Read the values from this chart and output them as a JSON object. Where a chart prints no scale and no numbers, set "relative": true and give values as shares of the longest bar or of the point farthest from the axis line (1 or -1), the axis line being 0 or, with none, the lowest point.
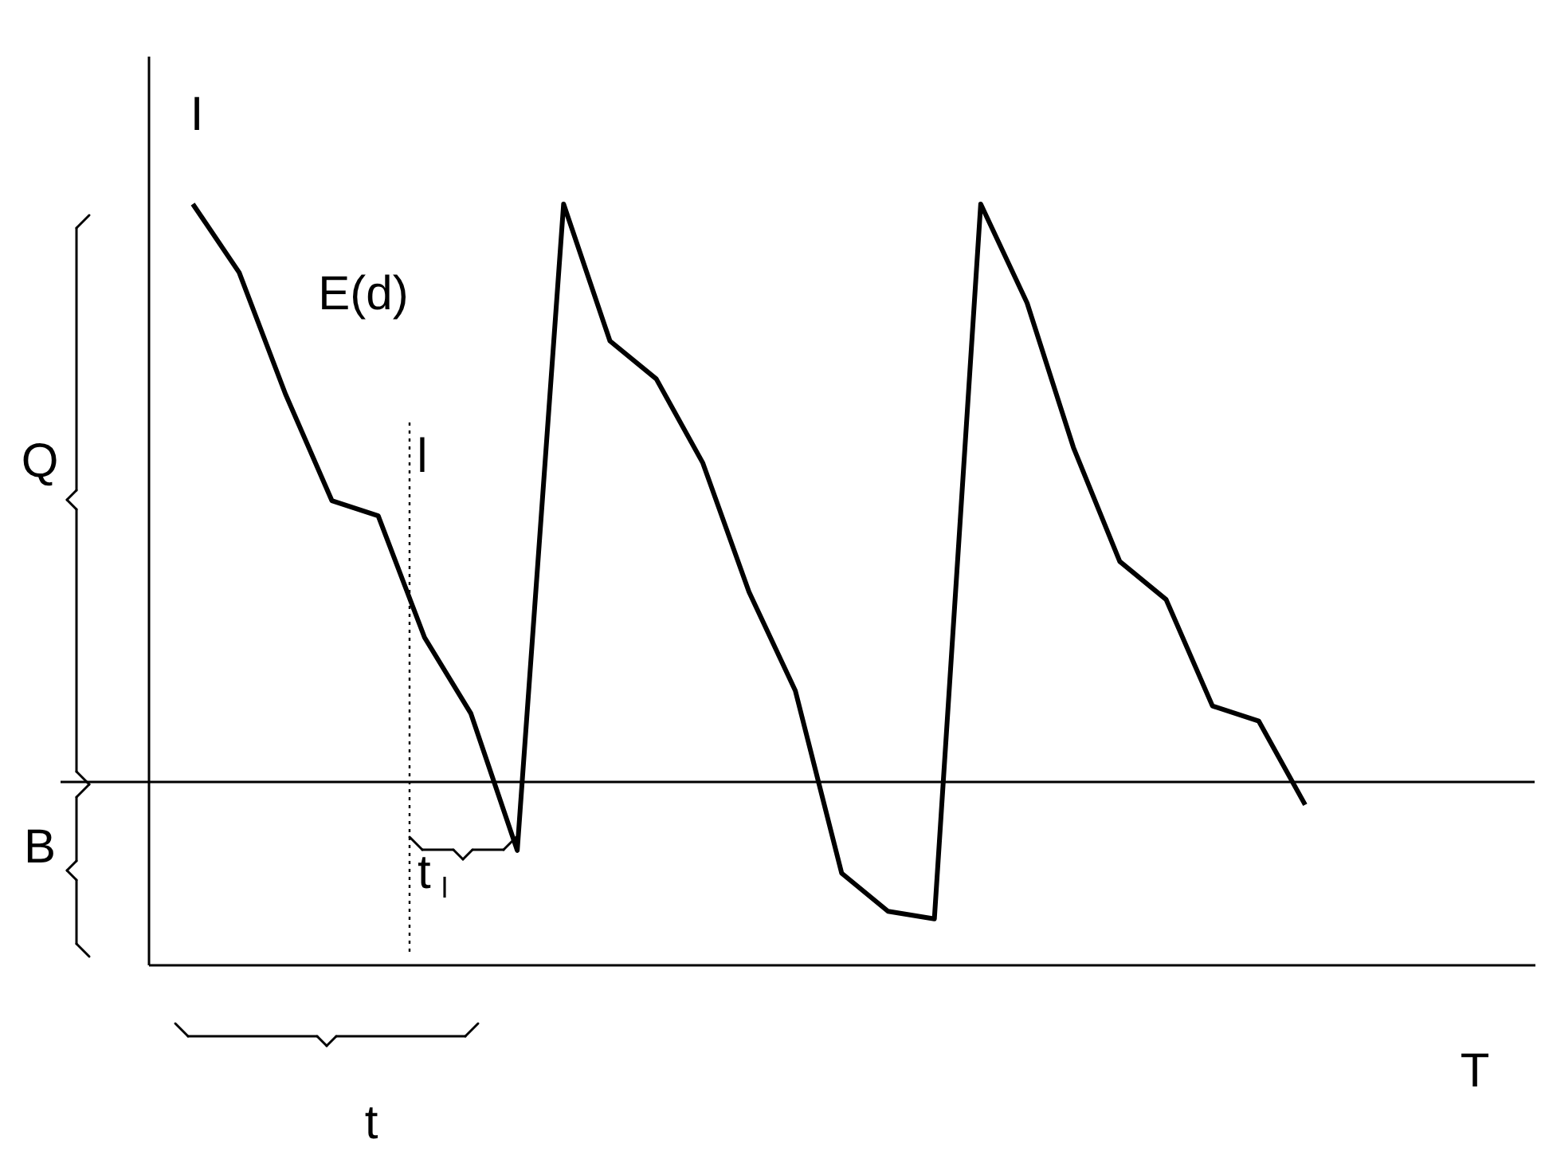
{
  "chart_data": {
    "type": "line",
    "relative": true,
    "xlabel": "T",
    "ylabel": "I",
    "categories": [
      null,
      null,
      null,
      null,
      null,
      null,
      null,
      null,
      null,
      null,
      null,
      null,
      null,
      null,
      null,
      null,
      null,
      null,
      null,
      null,
      null,
      null,
      null,
      null,
      null
    ],
    "series": [
      {
        "color": "#000000",
        "values": [
          1.0,
          0.91,
          0.75,
          0.61,
          0.59,
          0.43,
          0.33,
          0.15,
          1.0,
          0.82,
          0.77,
          0.66,
          0.49,
          0.36,
          0.12,
          0.07,
          0.06,
          1.0,
          0.87,
          0.68,
          0.53,
          0.48,
          0.34,
          0.32,
          0.21
        ]
      }
    ],
    "ref_lines": [
      {
        "axis": "y",
        "value": 0.24,
        "color": "#000000",
        "line_style": "solid"
      }
    ],
    "annotations": [
      "E(d)",
      "Q",
      "B",
      "t",
      "t$_{l}$",
      "l"
    ],
    "marker": "none",
    "line_style": "solid",
    "grid": false
  }
}
